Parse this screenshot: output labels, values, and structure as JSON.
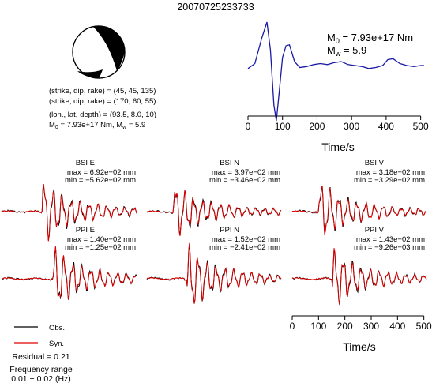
{
  "title": "20070725233733",
  "mechanism": {
    "plane1": "(strike, dip, rake) = (45, 45, 135)",
    "plane2": "(strike, dip, rake) = (170, 60, 55)",
    "location": "(lon., lat, depth) = (93.5, 8.0, 10)",
    "moment_prefix": "M",
    "moment_sub": "0",
    "moment_value": " = 7.93e+17 Nm, M",
    "mw_sub": "w",
    "mw_value": " = 5.9"
  },
  "stf_annotation": {
    "m0_prefix": "M",
    "m0_sub": "0",
    "m0_value": " = 7.93e+17 Nm",
    "mw_prefix": "M",
    "mw_sub": "w",
    "mw_value": " = 5.9"
  },
  "axes": {
    "top_xlabel": "Time/s",
    "bottom_xlabel": "Time/s",
    "top_ticks": [
      "0",
      "100",
      "200",
      "300",
      "400",
      "500"
    ],
    "bottom_ticks": [
      "0",
      "100",
      "200",
      "300",
      "400",
      "500"
    ]
  },
  "traces": [
    {
      "station": "BSI E",
      "max": "max = 6.92e−02 mm",
      "min": "min = −5.62e−02 mm"
    },
    {
      "station": "BSI N",
      "max": "max = 3.97e−02 mm",
      "min": "min = −3.46e−02 mm"
    },
    {
      "station": "BSI V",
      "max": "max = 3.18e−02 mm",
      "min": "min = −3.29e−02 mm"
    },
    {
      "station": "PPI E",
      "max": "max = 1.40e−02 mm",
      "min": "min = −1.25e−02 mm"
    },
    {
      "station": "PPI N",
      "max": "max = 1.52e−02 mm",
      "min": "min = −2.41e−02 mm"
    },
    {
      "station": "PPI V",
      "max": "max = 1.43e−02 mm",
      "min": "min = −9.26e−03 mm"
    }
  ],
  "legend": {
    "obs": "Obs.",
    "syn": "Syn."
  },
  "info": {
    "residual": "Residual = 0.21",
    "freq_label": "Frequency range",
    "freq_value": "0.01 − 0.02 (Hz)"
  },
  "colors": {
    "obs": "#000000",
    "syn": "#e00000",
    "stf": "#1a1aa6"
  },
  "chart_data": [
    {
      "type": "line",
      "name": "source time function",
      "x": [
        0,
        20,
        40,
        55,
        65,
        75,
        82,
        90,
        100,
        110,
        120,
        135,
        150,
        170,
        190,
        210,
        230,
        250,
        270,
        290,
        310,
        330,
        350,
        370,
        390,
        405,
        420,
        440,
        460,
        480,
        500,
        510
      ],
      "y": [
        0.05,
        0.3,
        1.6,
        2.4,
        1.0,
        -1.8,
        -2.6,
        -1.2,
        0.6,
        1.2,
        1.25,
        0.4,
        0.1,
        0.15,
        0.25,
        0.3,
        0.25,
        0.35,
        0.4,
        0.25,
        0.2,
        0.15,
        0.05,
        0.1,
        0.2,
        0.5,
        0.55,
        0.3,
        0.2,
        0.15,
        0.2,
        0.2
      ],
      "xlim": [
        0,
        510
      ],
      "xlabel": "Time/s",
      "ylabel": "",
      "grid": false
    },
    {
      "type": "line",
      "name": "waveforms",
      "series": [
        {
          "name": "Obs.",
          "values": "observed displacement traces (BSI E/N/V, PPI E/N/V)"
        },
        {
          "name": "Syn.",
          "values": "synthetic displacement traces (BSI E/N/V, PPI E/N/V)"
        }
      ],
      "xlim": [
        0,
        510
      ],
      "xlabel": "Time/s",
      "legend": "bottom-left"
    }
  ]
}
